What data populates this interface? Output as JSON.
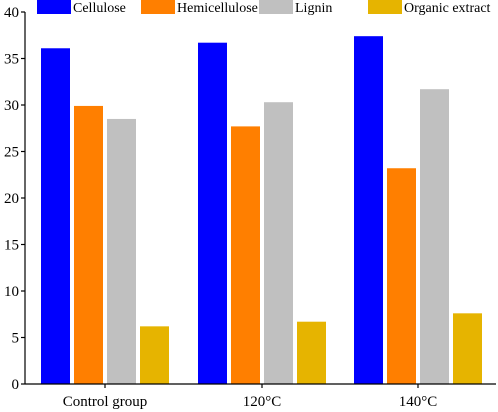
{
  "chart_data": {
    "type": "bar",
    "categories": [
      "Control group",
      "120°C",
      "140°C"
    ],
    "series": [
      {
        "name": "Cellulose",
        "color": "#0000ff",
        "values": [
          36.1,
          36.7,
          37.4
        ]
      },
      {
        "name": "Hemicellulose",
        "color": "#ff7f00",
        "values": [
          29.9,
          27.7,
          23.2
        ]
      },
      {
        "name": "Lignin",
        "color": "#c0c0c0",
        "values": [
          28.5,
          30.3,
          31.7
        ]
      },
      {
        "name": "Organic extract",
        "color": "#e6b400",
        "values": [
          6.2,
          6.7,
          7.6
        ]
      }
    ],
    "title": "",
    "xlabel": "",
    "ylabel": "",
    "ylim": [
      0,
      40
    ],
    "yticks": [
      0,
      5,
      10,
      15,
      20,
      25,
      30,
      35,
      40
    ],
    "grid": false,
    "legend_position": "top"
  }
}
